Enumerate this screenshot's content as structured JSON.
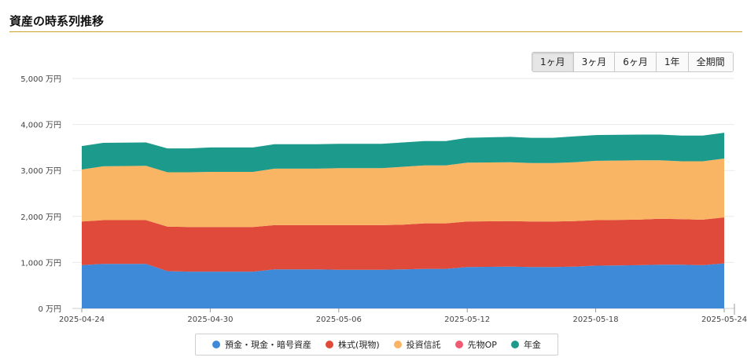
{
  "page": {
    "title": "資産の時系列推移"
  },
  "range_tabs": [
    {
      "label": "1ヶ月",
      "active": true
    },
    {
      "label": "3ヶ月",
      "active": false
    },
    {
      "label": "6ヶ月",
      "active": false
    },
    {
      "label": "1年",
      "active": false
    },
    {
      "label": "全期間",
      "active": false
    }
  ],
  "chart_data": {
    "type": "area",
    "stacked": true,
    "y_unit": "万円",
    "ylim": [
      0,
      5000
    ],
    "y_ticks": [
      "0 万円",
      "1,000 万円",
      "2,000 万円",
      "3,000 万円",
      "4,000 万円",
      "5,000 万円"
    ],
    "x_tick_labels": [
      "2025-04-24",
      "2025-04-30",
      "2025-05-06",
      "2025-05-12",
      "2025-05-18",
      "2025-05-24"
    ],
    "x": [
      "2025-04-24",
      "2025-04-25",
      "2025-04-27",
      "2025-04-28",
      "2025-04-29",
      "2025-04-30",
      "2025-05-02",
      "2025-05-03",
      "2025-05-04",
      "2025-05-05",
      "2025-05-06",
      "2025-05-08",
      "2025-05-09",
      "2025-05-10",
      "2025-05-11",
      "2025-05-12",
      "2025-05-14",
      "2025-05-15",
      "2025-05-16",
      "2025-05-17",
      "2025-05-18",
      "2025-05-20",
      "2025-05-21",
      "2025-05-22",
      "2025-05-23",
      "2025-05-24"
    ],
    "series": [
      {
        "name": "預金・現金・暗号資産",
        "color": "#3e8ad8",
        "values": [
          940,
          970,
          970,
          810,
          800,
          800,
          800,
          850,
          850,
          850,
          840,
          840,
          850,
          860,
          860,
          900,
          910,
          900,
          900,
          910,
          930,
          940,
          950,
          950,
          940,
          980
        ]
      },
      {
        "name": "株式(現物)",
        "color": "#e04a3b",
        "values": [
          950,
          950,
          950,
          970,
          970,
          970,
          970,
          960,
          960,
          960,
          970,
          970,
          970,
          990,
          990,
          990,
          990,
          990,
          990,
          990,
          990,
          990,
          1000,
          990,
          990,
          1000
        ]
      },
      {
        "name": "投資信託",
        "color": "#f9b563",
        "values": [
          1130,
          1170,
          1180,
          1180,
          1190,
          1200,
          1200,
          1230,
          1230,
          1230,
          1240,
          1240,
          1260,
          1260,
          1260,
          1280,
          1280,
          1270,
          1270,
          1280,
          1290,
          1290,
          1270,
          1260,
          1270,
          1280
        ]
      },
      {
        "name": "先物OP",
        "color": "#ef5a72",
        "values": [
          0,
          0,
          0,
          0,
          0,
          0,
          0,
          0,
          0,
          0,
          0,
          0,
          0,
          0,
          0,
          0,
          0,
          0,
          0,
          0,
          0,
          0,
          0,
          0,
          0,
          0
        ]
      },
      {
        "name": "年金",
        "color": "#1c9a8c",
        "values": [
          510,
          510,
          510,
          520,
          520,
          530,
          530,
          530,
          530,
          530,
          530,
          530,
          530,
          530,
          530,
          540,
          550,
          550,
          550,
          560,
          560,
          560,
          560,
          560,
          560,
          560
        ]
      }
    ]
  }
}
